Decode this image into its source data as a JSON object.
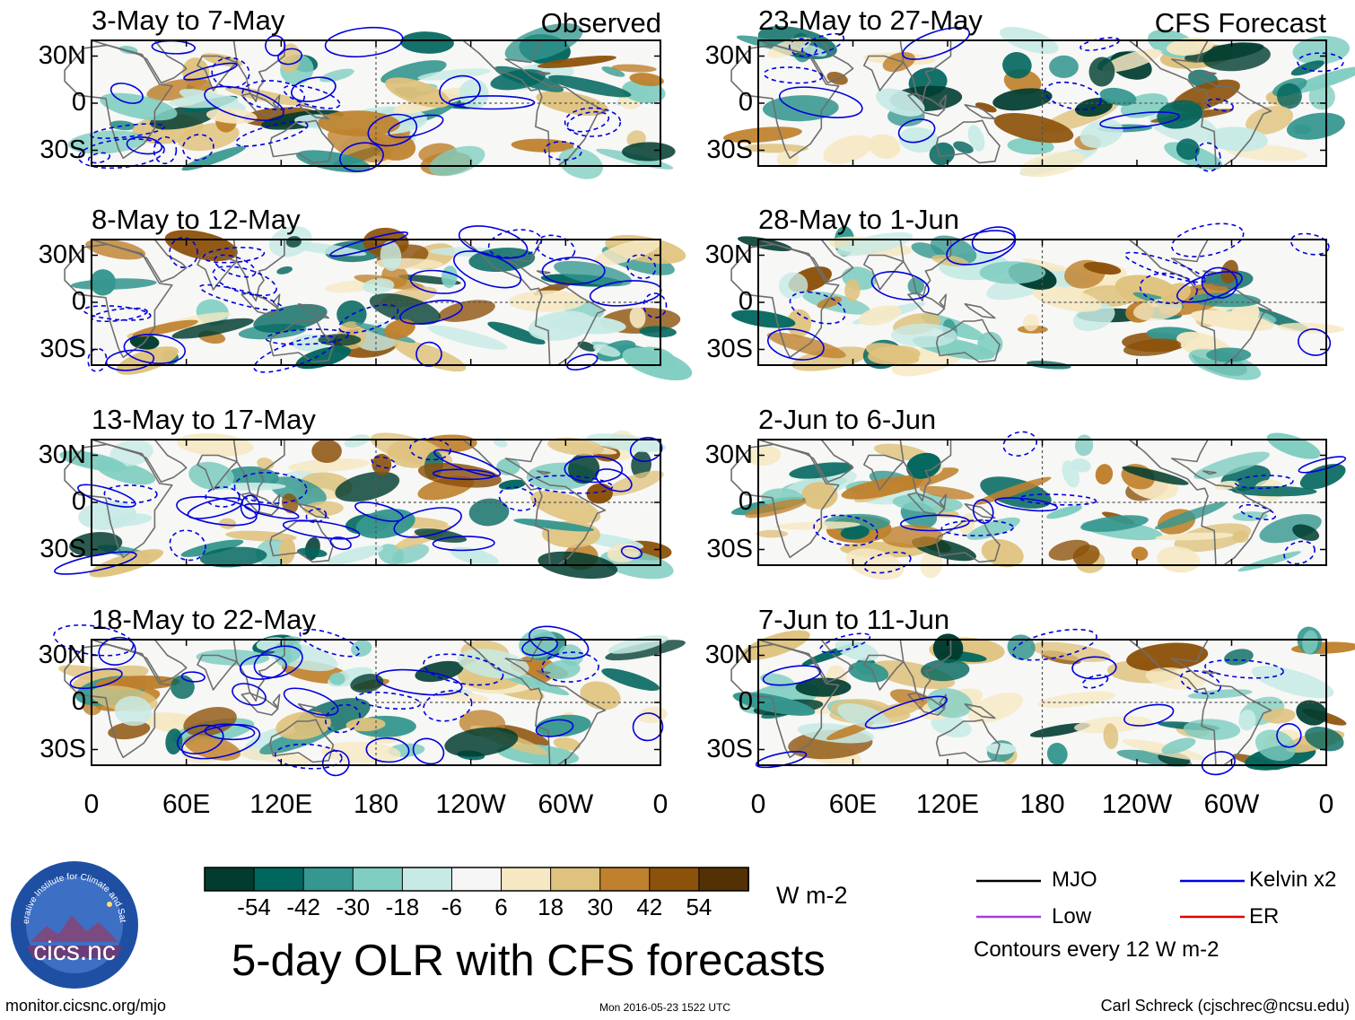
{
  "figure": {
    "title": "5-day OLR with CFS forecasts",
    "units": "W m-2",
    "source_url": "monitor.cicsnc.org/mjo",
    "timestamp": "Mon 2016-05-23 1522 UTC",
    "author": "Carl Schreck (cjschrec@ncsu.edu)",
    "logo_text": "cics.nc",
    "logo_ring_text": "Cooperative Institute for Climate and Satellites"
  },
  "columns": [
    {
      "tag": "Observed"
    },
    {
      "tag": "CFS Forecast"
    }
  ],
  "panels": [
    {
      "title": "3-May to 7-May",
      "column": 0,
      "row": 0
    },
    {
      "title": "8-May to 12-May",
      "column": 0,
      "row": 1
    },
    {
      "title": "13-May to 17-May",
      "column": 0,
      "row": 2
    },
    {
      "title": "18-May to 22-May",
      "column": 0,
      "row": 3
    },
    {
      "title": "23-May to 27-May",
      "column": 1,
      "row": 0
    },
    {
      "title": "28-May to 1-Jun",
      "column": 1,
      "row": 1
    },
    {
      "title": "2-Jun to 6-Jun",
      "column": 1,
      "row": 2
    },
    {
      "title": "7-Jun to 11-Jun",
      "column": 1,
      "row": 3
    }
  ],
  "axes": {
    "lat_labels": [
      "30N",
      "0",
      "30S"
    ],
    "lon_labels": [
      "0",
      "60E",
      "120E",
      "180",
      "120W",
      "60W",
      "0"
    ]
  },
  "colorbar": {
    "labels": [
      "-54",
      "-42",
      "-30",
      "-18",
      "-6",
      "6",
      "18",
      "30",
      "42",
      "54"
    ],
    "colors": [
      "#003c30",
      "#01665e",
      "#35978f",
      "#80cdc1",
      "#c7eae5",
      "#f5f5f5",
      "#f6e8c3",
      "#dfc27d",
      "#bf812d",
      "#8c510a",
      "#543005"
    ]
  },
  "legend": {
    "items": [
      {
        "label": "MJO",
        "color": "#000000"
      },
      {
        "label": "Kelvin x2",
        "color": "#0000dd"
      },
      {
        "label": "Low",
        "color": "#a040e0"
      },
      {
        "label": "ER",
        "color": "#dd0000"
      }
    ],
    "contour_note": "Contours every 12 W m-2"
  }
}
